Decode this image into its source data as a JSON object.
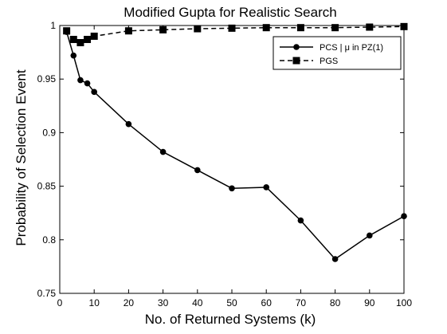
{
  "chart_data": {
    "type": "line",
    "title": "Modified Gupta for Realistic Search",
    "xlabel": "No. of Returned Systems (k)",
    "ylabel": "Probability of Selection Event",
    "xlim": [
      0,
      100
    ],
    "ylim": [
      0.75,
      1.0
    ],
    "xticks": [
      0,
      10,
      20,
      30,
      40,
      50,
      60,
      70,
      80,
      90,
      100
    ],
    "yticks": [
      0.75,
      0.8,
      0.85,
      0.9,
      0.95,
      1
    ],
    "ytick_labels": [
      "0.75",
      "0.8",
      "0.85",
      "0.9",
      "0.95",
      "1"
    ],
    "grid": false,
    "legend_position": "top-right",
    "series": [
      {
        "name": "PCS | μ in PZ(1)",
        "line_style": "solid",
        "marker": "circle",
        "color": "#000000",
        "x": [
          2,
          4,
          6,
          8,
          10,
          20,
          30,
          40,
          50,
          60,
          70,
          80,
          90,
          100
        ],
        "y": [
          0.994,
          0.972,
          0.949,
          0.946,
          0.938,
          0.908,
          0.882,
          0.865,
          0.848,
          0.849,
          0.818,
          0.782,
          0.804,
          0.822
        ]
      },
      {
        "name": "PGS",
        "line_style": "dashed",
        "marker": "square",
        "color": "#000000",
        "x": [
          2,
          4,
          6,
          8,
          10,
          20,
          30,
          40,
          50,
          60,
          70,
          80,
          90,
          100
        ],
        "y": [
          0.995,
          0.987,
          0.984,
          0.987,
          0.99,
          0.995,
          0.996,
          0.997,
          0.9975,
          0.998,
          0.998,
          0.998,
          0.9985,
          0.999
        ]
      }
    ]
  }
}
